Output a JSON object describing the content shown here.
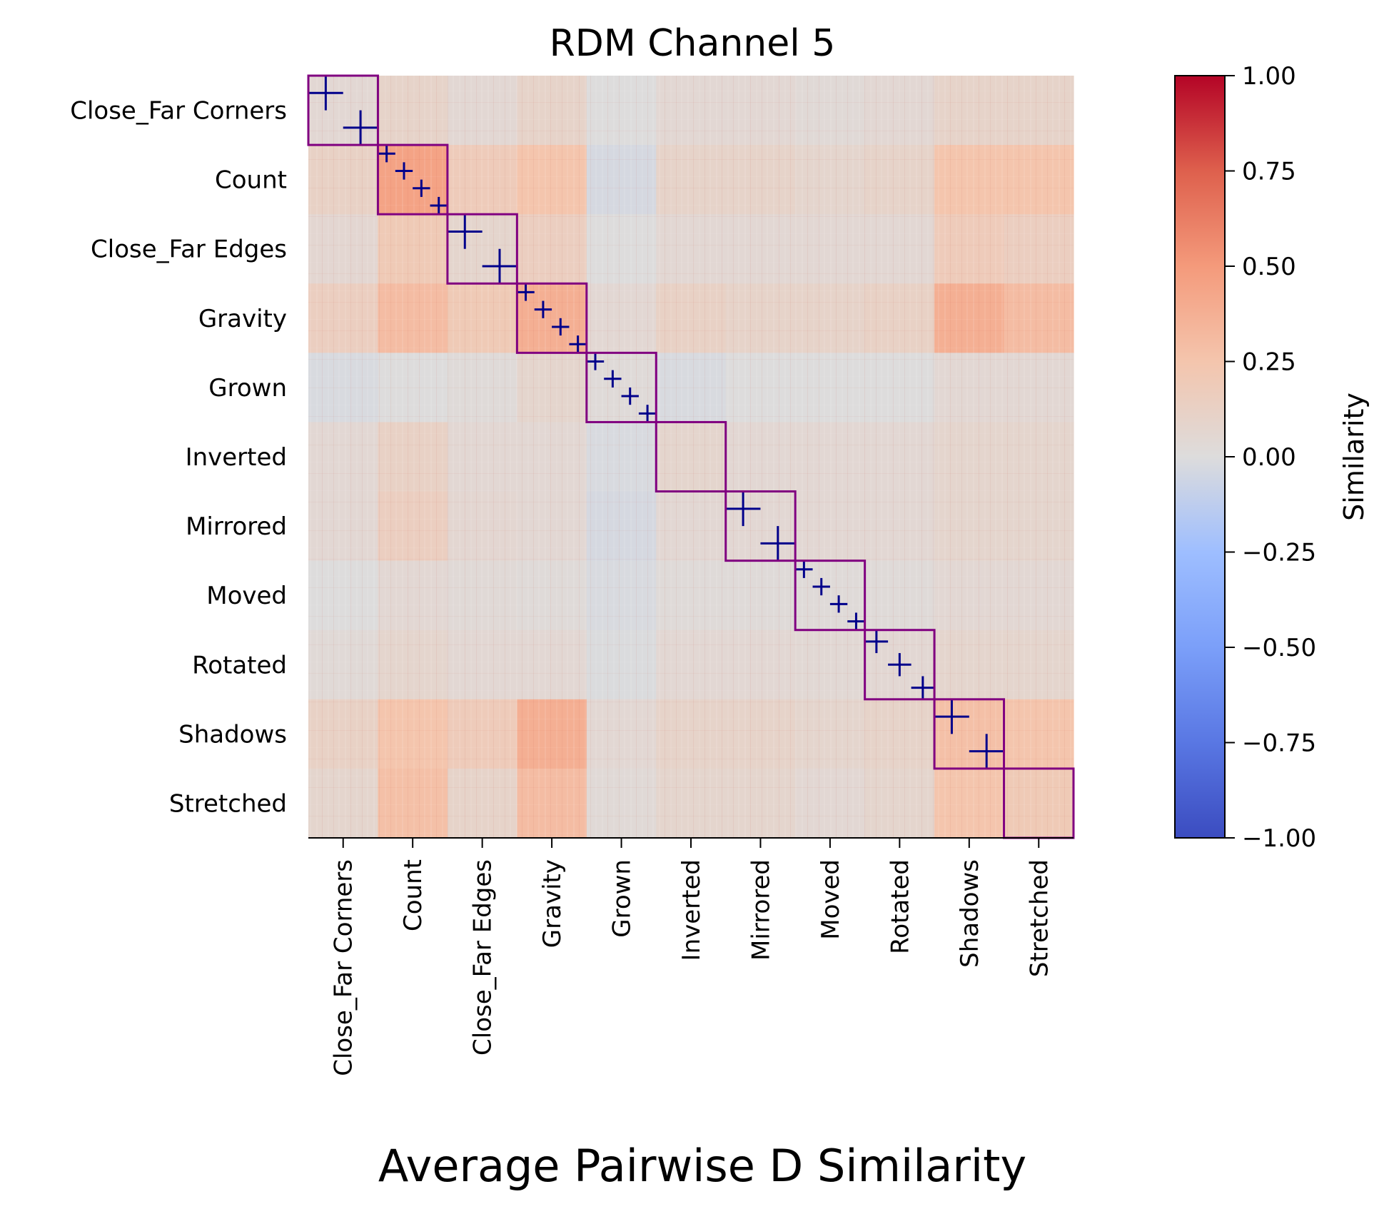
{
  "chart_data": {
    "type": "heatmap",
    "title": "RDM Channel 5",
    "xlabel": "Average Pairwise D Similarity",
    "ylabel": "",
    "categories": [
      "Close_Far Corners",
      "Count",
      "Close_Far Edges",
      "Gravity",
      "Grown",
      "Inverted",
      "Mirrored",
      "Moved",
      "Rotated",
      "Shadows",
      "Stretched"
    ],
    "block_similarity": [
      [
        0.05,
        0.1,
        0.05,
        0.1,
        0.0,
        0.05,
        0.05,
        0.03,
        0.05,
        0.1,
        0.1
      ],
      [
        0.12,
        0.45,
        0.18,
        0.25,
        -0.03,
        0.1,
        0.1,
        0.08,
        0.1,
        0.25,
        0.25
      ],
      [
        0.06,
        0.2,
        0.08,
        0.15,
        0.0,
        0.05,
        0.05,
        0.05,
        0.05,
        0.18,
        0.15
      ],
      [
        0.15,
        0.3,
        0.2,
        0.38,
        0.05,
        0.12,
        0.1,
        0.1,
        0.12,
        0.38,
        0.3
      ],
      [
        -0.02,
        0.0,
        0.02,
        0.08,
        0.02,
        -0.02,
        0.0,
        0.0,
        0.0,
        0.05,
        0.05
      ],
      [
        0.05,
        0.12,
        0.05,
        0.05,
        -0.02,
        0.08,
        0.05,
        0.05,
        0.05,
        0.08,
        0.08
      ],
      [
        0.05,
        0.15,
        0.06,
        0.05,
        -0.03,
        0.05,
        0.05,
        0.05,
        0.05,
        0.08,
        0.08
      ],
      [
        0.0,
        0.05,
        0.03,
        0.02,
        -0.02,
        0.02,
        0.02,
        0.02,
        0.02,
        0.05,
        0.05
      ],
      [
        0.03,
        0.08,
        0.05,
        0.05,
        -0.01,
        0.05,
        0.05,
        0.04,
        0.05,
        0.08,
        0.08
      ],
      [
        0.12,
        0.25,
        0.18,
        0.38,
        0.05,
        0.1,
        0.1,
        0.08,
        0.1,
        0.28,
        0.25
      ],
      [
        0.08,
        0.28,
        0.1,
        0.3,
        0.03,
        0.08,
        0.08,
        0.05,
        0.08,
        0.25,
        0.2
      ]
    ],
    "diagonal_subdivisions": [
      2,
      4,
      2,
      4,
      4,
      1,
      2,
      4,
      3,
      2,
      1
    ],
    "colormap": "coolwarm",
    "colorbar": {
      "label": "Similarity",
      "range": [
        -1.0,
        1.0
      ],
      "ticks": [
        "1.00",
        "0.75",
        "0.50",
        "0.25",
        "0.00",
        "−0.25",
        "−0.50",
        "−0.75",
        "−1.00"
      ]
    },
    "block_outline_color": "#800080",
    "subdivision_color": "#00008b"
  }
}
